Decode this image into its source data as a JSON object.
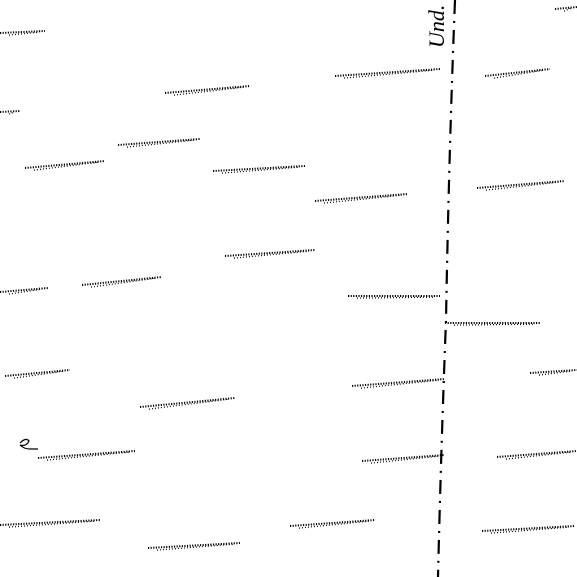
{
  "label": "Und."
}
